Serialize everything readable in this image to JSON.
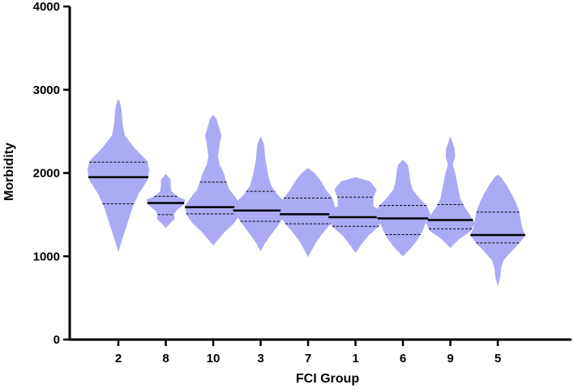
{
  "chart_data": {
    "type": "violin",
    "xlabel": "FCI Group",
    "ylabel": "Morbidity",
    "ylim": [
      0,
      4000
    ],
    "yticks": [
      0,
      1000,
      2000,
      3000,
      4000
    ],
    "categories": [
      "2",
      "8",
      "10",
      "3",
      "7",
      "1",
      "6",
      "9",
      "5"
    ],
    "fill_color": "#aaaaf5",
    "median": [
      1950,
      1640,
      1590,
      1550,
      1505,
      1470,
      1455,
      1435,
      1255
    ],
    "q1": [
      1630,
      1500,
      1510,
      1420,
      1390,
      1360,
      1260,
      1330,
      1160
    ],
    "q3": [
      2130,
      1720,
      1890,
      1780,
      1700,
      1710,
      1610,
      1620,
      1530
    ],
    "min": [
      1050,
      1340,
      1130,
      1060,
      990,
      1040,
      1000,
      1100,
      640
    ],
    "max": [
      2890,
      1990,
      2700,
      2440,
      2060,
      1950,
      2160,
      2440,
      1980
    ],
    "violins": [
      {
        "category": "2",
        "profile": [
          [
            1050,
            0
          ],
          [
            1150,
            3
          ],
          [
            1300,
            8
          ],
          [
            1450,
            13
          ],
          [
            1600,
            18
          ],
          [
            1750,
            25
          ],
          [
            1900,
            35
          ],
          [
            1950,
            37
          ],
          [
            2050,
            38
          ],
          [
            2150,
            35
          ],
          [
            2300,
            20
          ],
          [
            2450,
            8
          ],
          [
            2600,
            5
          ],
          [
            2750,
            4
          ],
          [
            2850,
            2
          ],
          [
            2890,
            0
          ]
        ]
      },
      {
        "category": "8",
        "profile": [
          [
            1340,
            0
          ],
          [
            1400,
            6
          ],
          [
            1450,
            11
          ],
          [
            1500,
            10
          ],
          [
            1550,
            13
          ],
          [
            1620,
            22
          ],
          [
            1680,
            24
          ],
          [
            1720,
            14
          ],
          [
            1780,
            7
          ],
          [
            1850,
            6
          ],
          [
            1920,
            6
          ],
          [
            1990,
            0
          ]
        ]
      },
      {
        "category": "10",
        "profile": [
          [
            1130,
            0
          ],
          [
            1200,
            6
          ],
          [
            1300,
            15
          ],
          [
            1400,
            26
          ],
          [
            1500,
            33
          ],
          [
            1600,
            35
          ],
          [
            1700,
            28
          ],
          [
            1800,
            20
          ],
          [
            1900,
            16
          ],
          [
            2000,
            13
          ],
          [
            2100,
            8
          ],
          [
            2200,
            6
          ],
          [
            2350,
            8
          ],
          [
            2450,
            10
          ],
          [
            2550,
            7
          ],
          [
            2650,
            4
          ],
          [
            2700,
            0
          ]
        ]
      },
      {
        "category": "3",
        "profile": [
          [
            1060,
            0
          ],
          [
            1150,
            5
          ],
          [
            1250,
            12
          ],
          [
            1350,
            20
          ],
          [
            1450,
            27
          ],
          [
            1550,
            34
          ],
          [
            1650,
            30
          ],
          [
            1750,
            20
          ],
          [
            1850,
            13
          ],
          [
            1950,
            10
          ],
          [
            2050,
            8
          ],
          [
            2150,
            6
          ],
          [
            2250,
            5
          ],
          [
            2350,
            4
          ],
          [
            2440,
            0
          ]
        ]
      },
      {
        "category": "7",
        "profile": [
          [
            990,
            0
          ],
          [
            1100,
            6
          ],
          [
            1200,
            12
          ],
          [
            1300,
            20
          ],
          [
            1400,
            29
          ],
          [
            1500,
            35
          ],
          [
            1600,
            33
          ],
          [
            1700,
            30
          ],
          [
            1800,
            22
          ],
          [
            1900,
            16
          ],
          [
            2000,
            8
          ],
          [
            2060,
            0
          ]
        ]
      },
      {
        "category": "1",
        "profile": [
          [
            1040,
            0
          ],
          [
            1150,
            8
          ],
          [
            1250,
            16
          ],
          [
            1350,
            28
          ],
          [
            1450,
            34
          ],
          [
            1550,
            31
          ],
          [
            1600,
            22
          ],
          [
            1700,
            22
          ],
          [
            1800,
            26
          ],
          [
            1900,
            18
          ],
          [
            1950,
            0
          ]
        ]
      },
      {
        "category": "6",
        "profile": [
          [
            1000,
            0
          ],
          [
            1100,
            10
          ],
          [
            1200,
            18
          ],
          [
            1300,
            24
          ],
          [
            1400,
            28
          ],
          [
            1500,
            34
          ],
          [
            1600,
            30
          ],
          [
            1700,
            20
          ],
          [
            1800,
            12
          ],
          [
            1900,
            9
          ],
          [
            2000,
            8
          ],
          [
            2100,
            6
          ],
          [
            2160,
            0
          ]
        ]
      },
      {
        "category": "9",
        "profile": [
          [
            1100,
            0
          ],
          [
            1200,
            10
          ],
          [
            1300,
            25
          ],
          [
            1400,
            30
          ],
          [
            1500,
            24
          ],
          [
            1600,
            17
          ],
          [
            1700,
            12
          ],
          [
            1800,
            10
          ],
          [
            1900,
            8
          ],
          [
            2000,
            6
          ],
          [
            2100,
            3
          ],
          [
            2200,
            6
          ],
          [
            2300,
            5
          ],
          [
            2440,
            0
          ]
        ]
      },
      {
        "category": "5",
        "profile": [
          [
            640,
            0
          ],
          [
            750,
            3
          ],
          [
            850,
            4
          ],
          [
            950,
            7
          ],
          [
            1050,
            16
          ],
          [
            1150,
            26
          ],
          [
            1250,
            34
          ],
          [
            1350,
            30
          ],
          [
            1450,
            28
          ],
          [
            1550,
            26
          ],
          [
            1650,
            22
          ],
          [
            1750,
            17
          ],
          [
            1850,
            11
          ],
          [
            1950,
            4
          ],
          [
            1980,
            0
          ]
        ]
      }
    ]
  }
}
